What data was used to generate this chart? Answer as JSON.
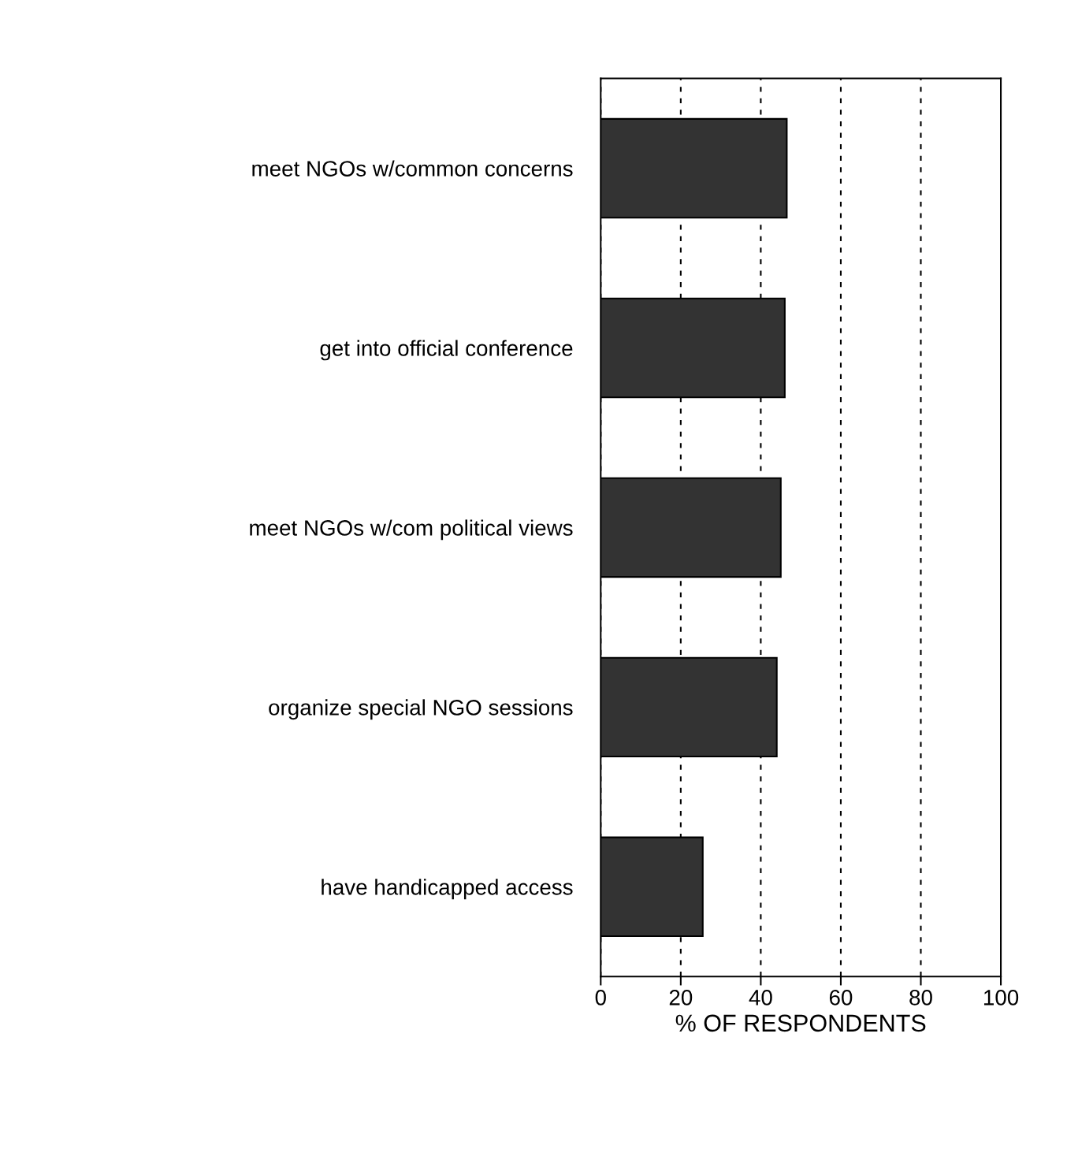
{
  "chart_data": {
    "type": "bar",
    "orientation": "horizontal",
    "xlabel": "% OF RESPONDENTS",
    "categories": [
      "meet NGOs w/common concerns",
      "get into official conference",
      "meet NGOs w/com political views",
      "organize special NGO sessions",
      "have handicapped access"
    ],
    "values": [
      46.5,
      46,
      45,
      44,
      25.5
    ],
    "color": "#333333",
    "xlim": [
      0,
      100
    ],
    "xticks": [
      0,
      20,
      40,
      60,
      80,
      100
    ],
    "grid": "x",
    "line_style": "dashed"
  }
}
